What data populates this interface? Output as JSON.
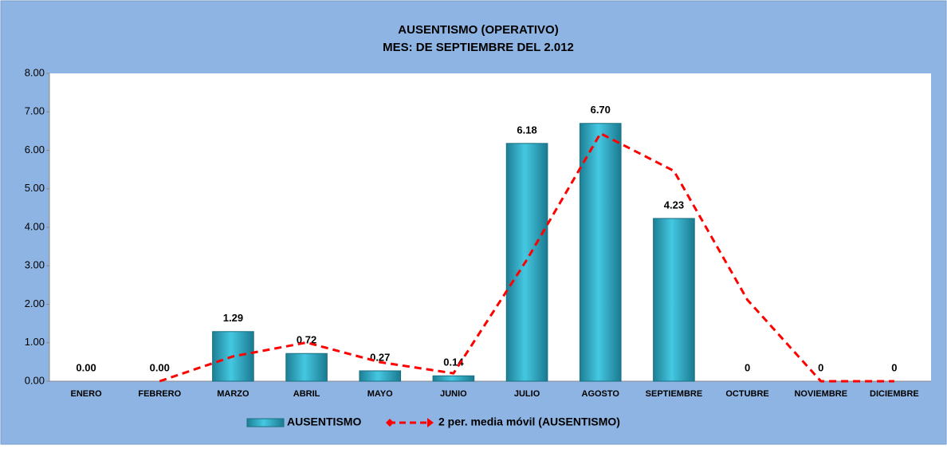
{
  "chart_data": {
    "type": "bar",
    "title": "AUSENTISMO (OPERATIVO)",
    "subtitle": "MES: DE SEPTIEMBRE DEL 2.012",
    "categories": [
      "ENERO",
      "FEBRERO",
      "MARZO",
      "ABRIL",
      "MAYO",
      "JUNIO",
      "JULIO",
      "AGOSTO",
      "SEPTIEMBRE",
      "OCTUBRE",
      "NOVIEMBRE",
      "DICIEMBRE"
    ],
    "series": [
      {
        "name": "AUSENTISMO",
        "type": "bar",
        "color": "#31b5d0",
        "values": [
          0,
          0,
          1.29,
          0.72,
          0.27,
          0.14,
          6.18,
          6.7,
          4.23,
          0,
          0,
          0
        ],
        "value_labels": [
          "0.00",
          "0.00",
          "1.29",
          "0.72",
          "0.27",
          "0.14",
          "6.18",
          "6.70",
          "4.23",
          "0",
          "0",
          "0"
        ]
      },
      {
        "name": "2 per. media móvil (AUSENTISMO)",
        "type": "line",
        "color": "#ff0000",
        "values": [
          null,
          0,
          0.645,
          1.005,
          0.495,
          0.205,
          3.16,
          6.44,
          5.465,
          2.115,
          0,
          0
        ]
      }
    ],
    "ylim": [
      0,
      8
    ],
    "yticks": [
      {
        "value": 0,
        "label": "0.00"
      },
      {
        "value": 1,
        "label": "1.00"
      },
      {
        "value": 2,
        "label": "2.00"
      },
      {
        "value": 3,
        "label": "3.00"
      },
      {
        "value": 4,
        "label": "4.00"
      },
      {
        "value": 5,
        "label": "5.00"
      },
      {
        "value": 6,
        "label": "6.00"
      },
      {
        "value": 7,
        "label": "7.00"
      },
      {
        "value": 8,
        "label": "8.00"
      }
    ],
    "grid": false,
    "legend": "bottom"
  }
}
